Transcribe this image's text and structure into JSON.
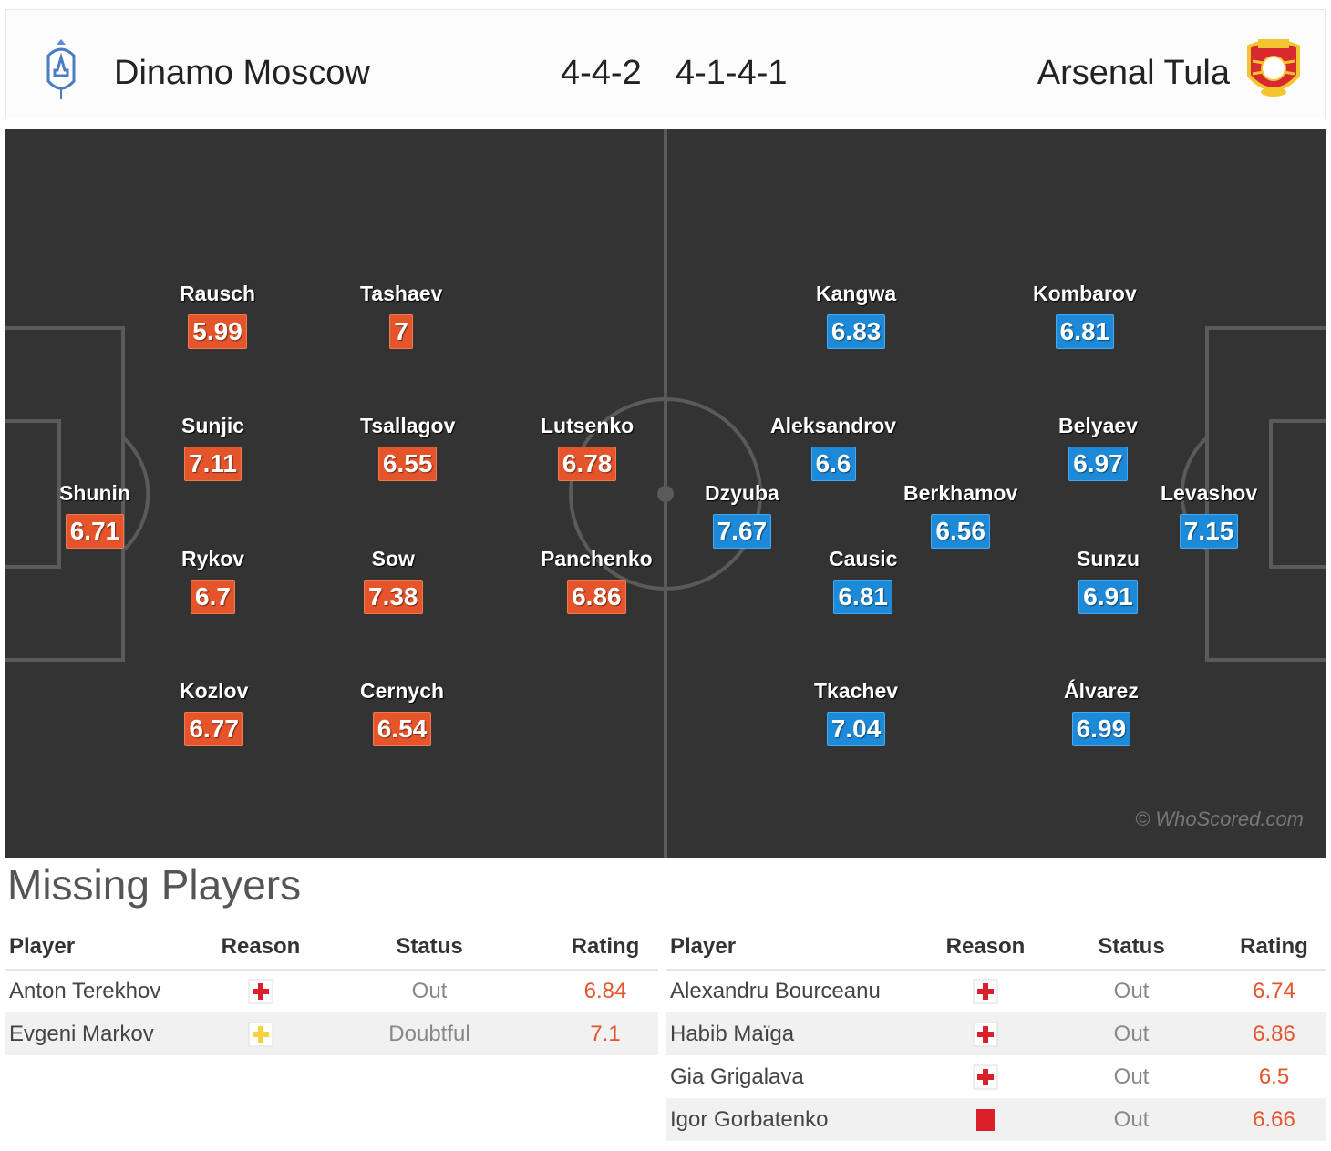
{
  "header": {
    "home_team": "Dinamo Moscow",
    "away_team": "Arsenal Tula",
    "home_formation": "4-4-2",
    "away_formation": "4-1-4-1",
    "home_crest_icon": "dinamo-crest-icon",
    "away_crest_icon": "arsenal-crest-icon"
  },
  "colors": {
    "home_rating": "#e5542a",
    "away_rating": "#1c8ad8",
    "pitch": "#333333"
  },
  "lineup": {
    "home": [
      {
        "name": "Shunin",
        "rating": "6.71"
      },
      {
        "name": "Rausch",
        "rating": "5.99"
      },
      {
        "name": "Sunjic",
        "rating": "7.11"
      },
      {
        "name": "Rykov",
        "rating": "6.7"
      },
      {
        "name": "Kozlov",
        "rating": "6.77"
      },
      {
        "name": "Tashaev",
        "rating": "7"
      },
      {
        "name": "Tsallagov",
        "rating": "6.55"
      },
      {
        "name": "Sow",
        "rating": "7.38"
      },
      {
        "name": "Cernych",
        "rating": "6.54"
      },
      {
        "name": "Lutsenko",
        "rating": "6.78"
      },
      {
        "name": "Panchenko",
        "rating": "6.86"
      }
    ],
    "away": [
      {
        "name": "Levashov",
        "rating": "7.15"
      },
      {
        "name": "Kombarov",
        "rating": "6.81"
      },
      {
        "name": "Belyaev",
        "rating": "6.97"
      },
      {
        "name": "Sunzu",
        "rating": "6.91"
      },
      {
        "name": "Álvarez",
        "rating": "6.99"
      },
      {
        "name": "Berkhamov",
        "rating": "6.56"
      },
      {
        "name": "Kangwa",
        "rating": "6.83"
      },
      {
        "name": "Aleksandrov",
        "rating": "6.6"
      },
      {
        "name": "Causic",
        "rating": "6.81"
      },
      {
        "name": "Tkachev",
        "rating": "7.04"
      },
      {
        "name": "Dzyuba",
        "rating": "7.67"
      }
    ]
  },
  "watermark": "© WhoScored.com",
  "missing": {
    "title": "Missing Players",
    "columns": {
      "player": "Player",
      "reason": "Reason",
      "status": "Status",
      "rating": "Rating"
    },
    "home": [
      {
        "player": "Anton Terekhov",
        "reason_icon": "injury-icon",
        "status": "Out",
        "rating": "6.84"
      },
      {
        "player": "Evgeni Markov",
        "reason_icon": "doubtful-icon",
        "status": "Doubtful",
        "rating": "7.1"
      }
    ],
    "away": [
      {
        "player": "Alexandru Bourceanu",
        "reason_icon": "injury-icon",
        "status": "Out",
        "rating": "6.74"
      },
      {
        "player": "Habib Maïga",
        "reason_icon": "injury-icon",
        "status": "Out",
        "rating": "6.86"
      },
      {
        "player": "Gia Grigalava",
        "reason_icon": "injury-icon",
        "status": "Out",
        "rating": "6.5"
      },
      {
        "player": "Igor Gorbatenko",
        "reason_icon": "red-card-icon",
        "status": "Out",
        "rating": "6.66"
      }
    ]
  }
}
